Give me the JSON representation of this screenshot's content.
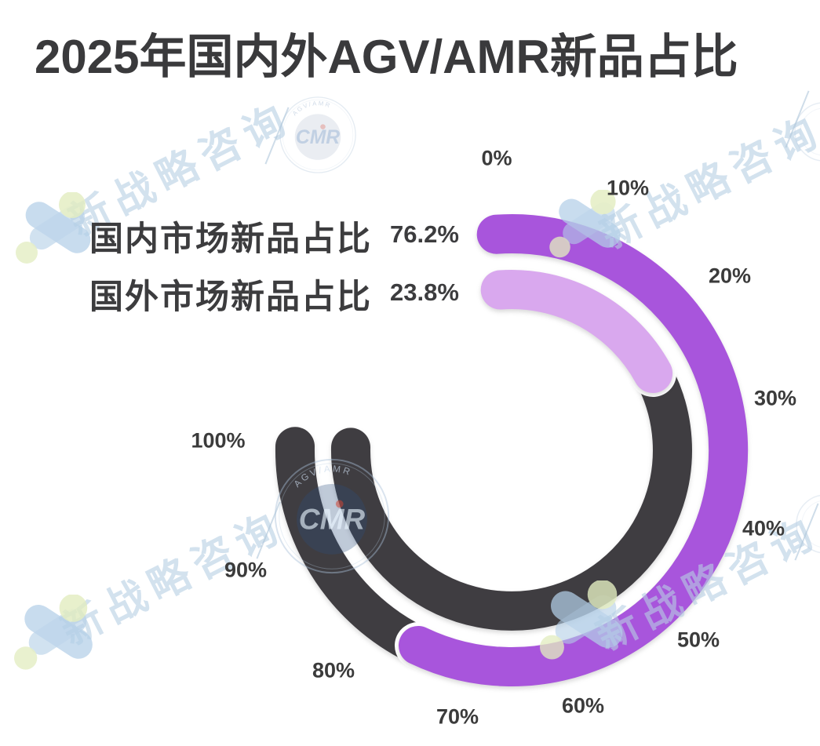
{
  "page": {
    "background": "#FFFFFF"
  },
  "title": "2025年国内外AGV/AMR新品占比",
  "legend": {
    "items": [
      {
        "label": "国内市场新品占比",
        "value": "76.2%"
      },
      {
        "label": "国外市场新品占比",
        "value": "23.8%"
      }
    ]
  },
  "chart_data": {
    "type": "bar",
    "variant": "radial-progress-rings",
    "title": "2025年国内外AGV/AMR新品占比",
    "series": [
      {
        "name": "国内市场新品占比",
        "value": 76.2,
        "unit": "%",
        "ring": "outer",
        "color": "#A855DC"
      },
      {
        "name": "国外市场新品占比",
        "value": 23.8,
        "unit": "%",
        "ring": "inner",
        "color": "#D9A8EE"
      }
    ],
    "remainder_color": "#3F3D41",
    "axis": {
      "min": 0,
      "max": 100,
      "tick_step": 10,
      "start": "top",
      "direction": "clockwise",
      "sweep_deg": 275
    },
    "ticks": [
      "0%",
      "10%",
      "20%",
      "30%",
      "40%",
      "50%",
      "60%",
      "70%",
      "80%",
      "90%",
      "100%"
    ],
    "grid": false,
    "legend_position": "upper-left",
    "geometry": {
      "cx": 652,
      "cy": 574,
      "outer_radius": 276,
      "inner_radius": 205,
      "ring_thickness": 50,
      "start_angle_deg": -4,
      "total_sweep_deg": 275
    }
  },
  "watermark": {
    "text": "新战略咨询",
    "stamp_label": "CMR",
    "stamp_ring_text": "AGV/AMR",
    "colors": {
      "text_blue": "#B7CFE4",
      "logo_blue": "#B3CFE7",
      "logo_green": "#E2ECC0",
      "stamp_blue": "#2E4E7E",
      "stamp_accent_red": "#C2453A"
    }
  }
}
